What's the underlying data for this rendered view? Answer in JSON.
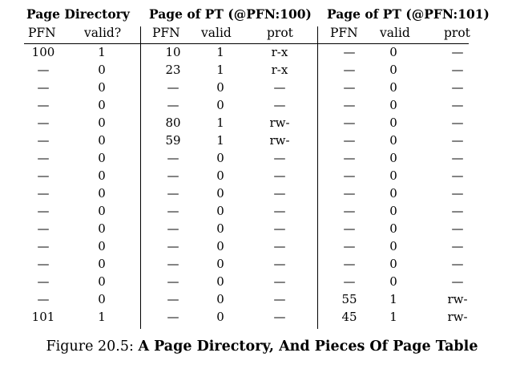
{
  "headers": {
    "page_directory": "Page Directory",
    "pt100": "Page of PT (@PFN:100)",
    "pt101": "Page of PT (@PFN:101)",
    "pfn": "PFN",
    "valid_q": "valid?",
    "valid": "valid",
    "prot": "prot"
  },
  "dash": "—",
  "rows": [
    {
      "pd_pfn": "100",
      "pd_valid": "1",
      "a_pfn": "10",
      "a_valid": "1",
      "a_prot": "r-x",
      "b_pfn": "—",
      "b_valid": "0",
      "b_prot": "—"
    },
    {
      "pd_pfn": "—",
      "pd_valid": "0",
      "a_pfn": "23",
      "a_valid": "1",
      "a_prot": "r-x",
      "b_pfn": "—",
      "b_valid": "0",
      "b_prot": "—"
    },
    {
      "pd_pfn": "—",
      "pd_valid": "0",
      "a_pfn": "—",
      "a_valid": "0",
      "a_prot": "—",
      "b_pfn": "—",
      "b_valid": "0",
      "b_prot": "—"
    },
    {
      "pd_pfn": "—",
      "pd_valid": "0",
      "a_pfn": "—",
      "a_valid": "0",
      "a_prot": "—",
      "b_pfn": "—",
      "b_valid": "0",
      "b_prot": "—"
    },
    {
      "pd_pfn": "—",
      "pd_valid": "0",
      "a_pfn": "80",
      "a_valid": "1",
      "a_prot": "rw-",
      "b_pfn": "—",
      "b_valid": "0",
      "b_prot": "—"
    },
    {
      "pd_pfn": "—",
      "pd_valid": "0",
      "a_pfn": "59",
      "a_valid": "1",
      "a_prot": "rw-",
      "b_pfn": "—",
      "b_valid": "0",
      "b_prot": "—"
    },
    {
      "pd_pfn": "—",
      "pd_valid": "0",
      "a_pfn": "—",
      "a_valid": "0",
      "a_prot": "—",
      "b_pfn": "—",
      "b_valid": "0",
      "b_prot": "—"
    },
    {
      "pd_pfn": "—",
      "pd_valid": "0",
      "a_pfn": "—",
      "a_valid": "0",
      "a_prot": "—",
      "b_pfn": "—",
      "b_valid": "0",
      "b_prot": "—"
    },
    {
      "pd_pfn": "—",
      "pd_valid": "0",
      "a_pfn": "—",
      "a_valid": "0",
      "a_prot": "—",
      "b_pfn": "—",
      "b_valid": "0",
      "b_prot": "—"
    },
    {
      "pd_pfn": "—",
      "pd_valid": "0",
      "a_pfn": "—",
      "a_valid": "0",
      "a_prot": "—",
      "b_pfn": "—",
      "b_valid": "0",
      "b_prot": "—"
    },
    {
      "pd_pfn": "—",
      "pd_valid": "0",
      "a_pfn": "—",
      "a_valid": "0",
      "a_prot": "—",
      "b_pfn": "—",
      "b_valid": "0",
      "b_prot": "—"
    },
    {
      "pd_pfn": "—",
      "pd_valid": "0",
      "a_pfn": "—",
      "a_valid": "0",
      "a_prot": "—",
      "b_pfn": "—",
      "b_valid": "0",
      "b_prot": "—"
    },
    {
      "pd_pfn": "—",
      "pd_valid": "0",
      "a_pfn": "—",
      "a_valid": "0",
      "a_prot": "—",
      "b_pfn": "—",
      "b_valid": "0",
      "b_prot": "—"
    },
    {
      "pd_pfn": "—",
      "pd_valid": "0",
      "a_pfn": "—",
      "a_valid": "0",
      "a_prot": "—",
      "b_pfn": "—",
      "b_valid": "0",
      "b_prot": "—"
    },
    {
      "pd_pfn": "—",
      "pd_valid": "0",
      "a_pfn": "—",
      "a_valid": "0",
      "a_prot": "—",
      "b_pfn": "55",
      "b_valid": "1",
      "b_prot": "rw-"
    },
    {
      "pd_pfn": "101",
      "pd_valid": "1",
      "a_pfn": "—",
      "a_valid": "0",
      "a_prot": "—",
      "b_pfn": "45",
      "b_valid": "1",
      "b_prot": "rw-"
    }
  ],
  "caption": {
    "prefix": "Figure 20.5: ",
    "title": "A Page Directory, And Pieces Of Page Table"
  }
}
